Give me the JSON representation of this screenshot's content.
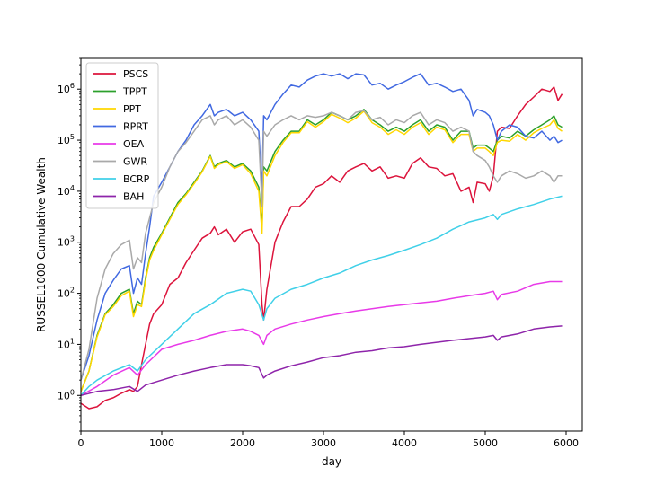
{
  "chart_data": {
    "type": "line",
    "title": "",
    "xlabel": "day",
    "ylabel": "RUSSEL1000  Cumulative Wealth",
    "xlim": [
      0,
      6200
    ],
    "ylim": [
      0.2,
      4000000
    ],
    "yscale": "log",
    "grid": false,
    "legend_position": "top-left",
    "x_ticks": [
      {
        "value": 0,
        "label": "0"
      },
      {
        "value": 1000,
        "label": "1000"
      },
      {
        "value": 2000,
        "label": "2000"
      },
      {
        "value": 3000,
        "label": "3000"
      },
      {
        "value": 4000,
        "label": "4000"
      },
      {
        "value": 5000,
        "label": "5000"
      },
      {
        "value": 6000,
        "label": "6000"
      }
    ],
    "y_ticks": [
      {
        "value": 1,
        "base": "10",
        "exp": "0"
      },
      {
        "value": 10,
        "base": "10",
        "exp": "1"
      },
      {
        "value": 100,
        "base": "10",
        "exp": "2"
      },
      {
        "value": 1000,
        "base": "10",
        "exp": "3"
      },
      {
        "value": 10000,
        "base": "10",
        "exp": "4"
      },
      {
        "value": 100000,
        "base": "10",
        "exp": "5"
      },
      {
        "value": 1000000,
        "base": "10",
        "exp": "6"
      }
    ],
    "series": [
      {
        "name": "PSCS",
        "color": "#DC143C",
        "x": [
          0,
          100,
          200,
          300,
          400,
          500,
          600,
          650,
          700,
          750,
          800,
          850,
          900,
          1000,
          1100,
          1200,
          1300,
          1400,
          1500,
          1600,
          1650,
          1700,
          1800,
          1900,
          2000,
          2100,
          2200,
          2240,
          2260,
          2300,
          2400,
          2500,
          2600,
          2700,
          2800,
          2900,
          3000,
          3100,
          3200,
          3300,
          3400,
          3500,
          3600,
          3700,
          3800,
          3900,
          4000,
          4100,
          4200,
          4300,
          4400,
          4500,
          4600,
          4700,
          4800,
          4850,
          4900,
          5000,
          5050,
          5100,
          5150,
          5200,
          5300,
          5400,
          5500,
          5600,
          5700,
          5800,
          5850,
          5900,
          5950
        ],
        "y": [
          0.7,
          0.55,
          0.6,
          0.8,
          0.9,
          1.1,
          1.3,
          1.2,
          1.5,
          4,
          10,
          25,
          40,
          60,
          150,
          200,
          400,
          700,
          1200,
          1500,
          2000,
          1400,
          1800,
          1000,
          1600,
          1800,
          900,
          60,
          30,
          120,
          1000,
          2500,
          5000,
          5000,
          7000,
          12000,
          14000,
          20000,
          15000,
          25000,
          30000,
          35000,
          25000,
          30000,
          18000,
          20000,
          18000,
          35000,
          45000,
          30000,
          28000,
          20000,
          22000,
          10000,
          12000,
          6000,
          15000,
          14000,
          10000,
          20000,
          150000,
          180000,
          170000,
          300000,
          500000,
          700000,
          1000000,
          900000,
          1100000,
          600000,
          800000
        ]
      },
      {
        "name": "TPPT",
        "color": "#2CA02C",
        "x": [
          0,
          100,
          200,
          300,
          400,
          500,
          600,
          650,
          700,
          750,
          800,
          850,
          900,
          1000,
          1100,
          1200,
          1300,
          1400,
          1500,
          1600,
          1650,
          1700,
          1800,
          1900,
          2000,
          2100,
          2200,
          2240,
          2260,
          2300,
          2400,
          2500,
          2600,
          2700,
          2800,
          2900,
          3000,
          3100,
          3200,
          3300,
          3400,
          3500,
          3600,
          3700,
          3800,
          3900,
          4000,
          4100,
          4200,
          4300,
          4400,
          4500,
          4600,
          4700,
          4800,
          4850,
          4900,
          5000,
          5050,
          5100,
          5150,
          5200,
          5300,
          5400,
          5500,
          5600,
          5700,
          5800,
          5850,
          5900,
          5950
        ],
        "y": [
          1.2,
          3,
          15,
          40,
          60,
          100,
          120,
          40,
          70,
          60,
          200,
          500,
          800,
          1500,
          3000,
          6000,
          9000,
          15000,
          25000,
          50000,
          30000,
          35000,
          40000,
          30000,
          35000,
          25000,
          12000,
          2000,
          30000,
          25000,
          60000,
          100000,
          150000,
          150000,
          250000,
          200000,
          250000,
          350000,
          300000,
          250000,
          300000,
          400000,
          250000,
          200000,
          150000,
          180000,
          150000,
          200000,
          250000,
          150000,
          200000,
          180000,
          100000,
          150000,
          150000,
          70000,
          80000,
          80000,
          70000,
          60000,
          100000,
          120000,
          110000,
          150000,
          120000,
          160000,
          200000,
          250000,
          300000,
          200000,
          180000
        ]
      },
      {
        "name": "PPT",
        "color": "#FFD700",
        "x": [
          0,
          100,
          200,
          300,
          400,
          500,
          600,
          650,
          700,
          750,
          800,
          850,
          900,
          1000,
          1100,
          1200,
          1300,
          1400,
          1500,
          1600,
          1650,
          1700,
          1800,
          1900,
          2000,
          2100,
          2200,
          2240,
          2260,
          2300,
          2400,
          2500,
          2600,
          2700,
          2800,
          2900,
          3000,
          3100,
          3200,
          3300,
          3400,
          3500,
          3600,
          3700,
          3800,
          3900,
          4000,
          4100,
          4200,
          4300,
          4400,
          4500,
          4600,
          4700,
          4800,
          4850,
          4900,
          5000,
          5050,
          5100,
          5150,
          5200,
          5300,
          5400,
          5500,
          5600,
          5700,
          5800,
          5850,
          5900,
          5950
        ],
        "y": [
          1.2,
          3,
          14,
          38,
          55,
          90,
          110,
          35,
          60,
          55,
          180,
          450,
          700,
          1400,
          2800,
          5500,
          8500,
          14000,
          24000,
          48000,
          28000,
          33000,
          38000,
          28000,
          33000,
          22000,
          10000,
          1500,
          25000,
          20000,
          50000,
          90000,
          140000,
          140000,
          230000,
          180000,
          230000,
          320000,
          270000,
          220000,
          270000,
          370000,
          220000,
          180000,
          130000,
          160000,
          130000,
          180000,
          220000,
          130000,
          180000,
          160000,
          90000,
          130000,
          130000,
          60000,
          70000,
          70000,
          60000,
          50000,
          90000,
          100000,
          95000,
          130000,
          100000,
          140000,
          170000,
          200000,
          250000,
          170000,
          150000
        ]
      },
      {
        "name": "RPRT",
        "color": "#4169E1",
        "x": [
          0,
          100,
          200,
          300,
          400,
          500,
          600,
          650,
          700,
          750,
          800,
          850,
          900,
          1000,
          1100,
          1200,
          1300,
          1400,
          1500,
          1600,
          1650,
          1700,
          1800,
          1900,
          2000,
          2100,
          2200,
          2240,
          2260,
          2300,
          2400,
          2500,
          2600,
          2700,
          2800,
          2900,
          3000,
          3100,
          3200,
          3300,
          3400,
          3500,
          3600,
          3700,
          3800,
          3900,
          4000,
          4100,
          4200,
          4300,
          4400,
          4500,
          4600,
          4700,
          4800,
          4850,
          4900,
          5000,
          5050,
          5100,
          5150,
          5200,
          5300,
          5400,
          5500,
          5600,
          5700,
          5800,
          5850,
          5900,
          5950
        ],
        "y": [
          2,
          6,
          30,
          100,
          180,
          300,
          350,
          100,
          200,
          150,
          600,
          2000,
          8000,
          15000,
          30000,
          60000,
          100000,
          200000,
          300000,
          500000,
          300000,
          350000,
          400000,
          300000,
          350000,
          250000,
          150000,
          10000,
          300000,
          250000,
          500000,
          800000,
          1200000,
          1100000,
          1500000,
          1800000,
          2000000,
          1800000,
          2000000,
          1600000,
          2000000,
          1900000,
          1200000,
          1300000,
          1000000,
          1200000,
          1400000,
          1700000,
          2000000,
          1200000,
          1300000,
          1100000,
          900000,
          1000000,
          600000,
          300000,
          400000,
          350000,
          300000,
          200000,
          100000,
          150000,
          200000,
          180000,
          120000,
          110000,
          150000,
          100000,
          120000,
          90000,
          100000
        ]
      },
      {
        "name": "OEA",
        "color": "#E83AE8",
        "x": [
          0,
          200,
          400,
          600,
          700,
          800,
          1000,
          1200,
          1400,
          1600,
          1800,
          2000,
          2100,
          2200,
          2260,
          2300,
          2400,
          2600,
          2800,
          3000,
          3200,
          3400,
          3600,
          3800,
          4000,
          4200,
          4400,
          4600,
          4800,
          5000,
          5100,
          5150,
          5200,
          5400,
          5600,
          5800,
          5950
        ],
        "y": [
          1,
          1.5,
          2.5,
          3.5,
          2.5,
          4,
          8,
          10,
          12,
          15,
          18,
          20,
          18,
          15,
          10,
          15,
          20,
          25,
          30,
          35,
          40,
          45,
          50,
          55,
          60,
          65,
          70,
          80,
          90,
          100,
          110,
          75,
          95,
          110,
          150,
          170,
          170
        ]
      },
      {
        "name": "GWR",
        "color": "#A9A9A9",
        "x": [
          0,
          100,
          200,
          300,
          400,
          500,
          600,
          650,
          700,
          750,
          800,
          850,
          900,
          1000,
          1100,
          1200,
          1300,
          1400,
          1500,
          1600,
          1650,
          1700,
          1800,
          1900,
          2000,
          2100,
          2200,
          2240,
          2260,
          2300,
          2400,
          2500,
          2600,
          2700,
          2800,
          2900,
          3000,
          3100,
          3200,
          3300,
          3400,
          3500,
          3600,
          3700,
          3800,
          3900,
          4000,
          4100,
          4200,
          4300,
          4400,
          4500,
          4600,
          4700,
          4800,
          4850,
          4900,
          5000,
          5050,
          5100,
          5150,
          5200,
          5300,
          5400,
          5500,
          5600,
          5700,
          5800,
          5850,
          5900,
          5950
        ],
        "y": [
          2,
          8,
          80,
          300,
          600,
          900,
          1100,
          300,
          500,
          400,
          1500,
          3000,
          6000,
          12000,
          30000,
          60000,
          90000,
          150000,
          250000,
          300000,
          200000,
          250000,
          300000,
          200000,
          250000,
          180000,
          100000,
          5000,
          150000,
          120000,
          200000,
          250000,
          300000,
          250000,
          300000,
          280000,
          300000,
          350000,
          300000,
          250000,
          350000,
          380000,
          250000,
          280000,
          200000,
          250000,
          220000,
          300000,
          350000,
          200000,
          250000,
          220000,
          150000,
          180000,
          150000,
          60000,
          50000,
          40000,
          30000,
          20000,
          15000,
          20000,
          25000,
          22000,
          18000,
          20000,
          25000,
          20000,
          15000,
          20000,
          20000
        ]
      },
      {
        "name": "BCRP",
        "color": "#40D0E8",
        "x": [
          0,
          100,
          200,
          400,
          600,
          700,
          800,
          1000,
          1200,
          1400,
          1600,
          1800,
          2000,
          2100,
          2200,
          2260,
          2300,
          2400,
          2600,
          2800,
          3000,
          3200,
          3400,
          3600,
          3800,
          4000,
          4200,
          4400,
          4600,
          4800,
          5000,
          5100,
          5150,
          5200,
          5400,
          5600,
          5800,
          5950
        ],
        "y": [
          1,
          1.5,
          2,
          3,
          4,
          3,
          5,
          10,
          20,
          40,
          60,
          100,
          120,
          110,
          60,
          30,
          50,
          80,
          120,
          150,
          200,
          250,
          350,
          450,
          550,
          700,
          900,
          1200,
          1800,
          2500,
          3000,
          3500,
          2800,
          3500,
          4500,
          5500,
          7000,
          8000
        ]
      },
      {
        "name": "BAH",
        "color": "#8E24AA",
        "x": [
          0,
          200,
          400,
          600,
          700,
          800,
          1000,
          1200,
          1400,
          1600,
          1800,
          2000,
          2100,
          2200,
          2260,
          2300,
          2400,
          2600,
          2800,
          3000,
          3200,
          3400,
          3600,
          3800,
          4000,
          4200,
          4400,
          4600,
          4800,
          5000,
          5100,
          5150,
          5200,
          5400,
          5600,
          5800,
          5950
        ],
        "y": [
          1,
          1.2,
          1.3,
          1.5,
          1.2,
          1.6,
          2,
          2.5,
          3,
          3.5,
          4,
          4,
          3.8,
          3.5,
          2.2,
          2.5,
          3,
          3.8,
          4.5,
          5.5,
          6,
          7,
          7.5,
          8.5,
          9,
          10,
          11,
          12,
          13,
          14,
          15,
          12,
          14,
          16,
          20,
          22,
          23
        ]
      }
    ]
  }
}
